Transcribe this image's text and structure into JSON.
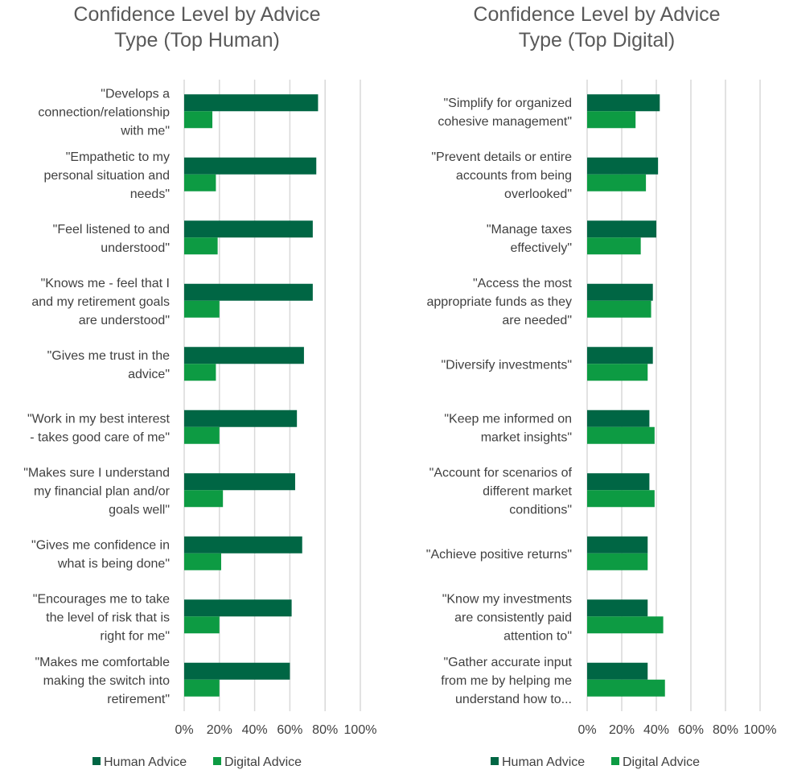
{
  "colors": {
    "human": "#006644",
    "digital": "#0d9b43",
    "grid": "#d9d9d9"
  },
  "chart_data": [
    {
      "type": "bar",
      "orientation": "horizontal",
      "title": [
        "Confidence Level by Advice",
        "Type (Top Human)"
      ],
      "categories": [
        [
          "\"Develops a",
          "connection/relationship",
          "with me\""
        ],
        [
          "\"Empathetic to my",
          "personal situation and",
          "needs\""
        ],
        [
          "\"Feel listened to and",
          "understood\""
        ],
        [
          "\"Knows me - feel that I",
          "and my retirement goals",
          "are understood\""
        ],
        [
          "\"Gives me trust in the",
          "advice\""
        ],
        [
          "\"Work in my best interest",
          "- takes good care of me\""
        ],
        [
          "\"Makes sure I understand",
          "my financial plan and/or",
          "goals well\""
        ],
        [
          "\"Gives me confidence in",
          "what is being done\""
        ],
        [
          "\"Encourages me to take",
          "the level of risk that is",
          "right for me\""
        ],
        [
          "\"Makes me comfortable",
          "making the switch into",
          "retirement\""
        ]
      ],
      "series": [
        {
          "name": "Human Advice",
          "values": [
            76,
            75,
            73,
            73,
            68,
            64,
            63,
            67,
            61,
            60
          ]
        },
        {
          "name": "Digital Advice",
          "values": [
            16,
            18,
            19,
            20,
            18,
            20,
            22,
            21,
            20,
            20
          ]
        }
      ],
      "xlim": [
        0,
        100
      ],
      "xticks": [
        "0%",
        "20%",
        "40%",
        "60%",
        "80%",
        "100%"
      ],
      "grid": true,
      "legend": "bottom"
    },
    {
      "type": "bar",
      "orientation": "horizontal",
      "title": [
        "Confidence Level by Advice",
        "Type (Top Digital)"
      ],
      "categories": [
        [
          "\"Simplify for organized",
          "cohesive management\""
        ],
        [
          "\"Prevent details or entire",
          "accounts from being",
          "overlooked\""
        ],
        [
          "\"Manage taxes",
          "effectively\""
        ],
        [
          "\"Access the most",
          "appropriate funds as they",
          "are needed\""
        ],
        [
          "\"Diversify investments\""
        ],
        [
          "\"Keep me informed on",
          "market insights\""
        ],
        [
          "\"Account for scenarios of",
          "different market",
          "conditions\""
        ],
        [
          "\"Achieve positive returns\""
        ],
        [
          "\"Know my investments",
          "are consistently paid",
          "attention to\""
        ],
        [
          "\"Gather accurate input",
          "from me by helping me",
          "understand how to..."
        ]
      ],
      "series": [
        {
          "name": "Human Advice",
          "values": [
            42,
            41,
            40,
            38,
            38,
            36,
            36,
            35,
            35,
            35
          ]
        },
        {
          "name": "Digital Advice",
          "values": [
            28,
            34,
            31,
            37,
            35,
            39,
            39,
            35,
            44,
            45
          ]
        }
      ],
      "xlim": [
        0,
        100
      ],
      "xticks": [
        "0%",
        "20%",
        "40%",
        "60%",
        "80%",
        "100%"
      ],
      "grid": true,
      "legend": "bottom"
    }
  ]
}
